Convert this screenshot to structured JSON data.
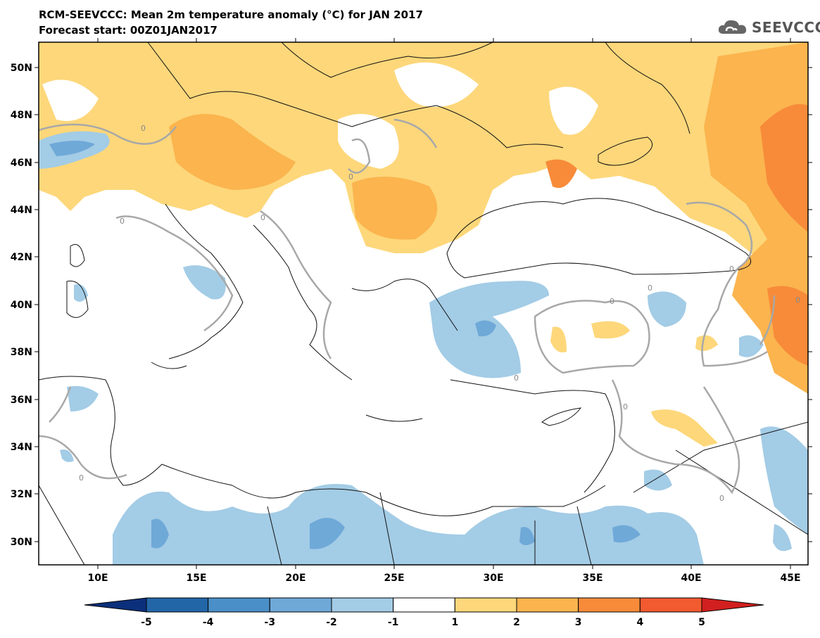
{
  "title": "RCM-SEEVCCC: Mean 2m temperature anomaly (°C) for JAN 2017",
  "subtitle": "Forecast start: 00Z01JAN2017",
  "logo_text": "SEEVCCC",
  "lat_labels": [
    "50N",
    "48N",
    "46N",
    "44N",
    "42N",
    "40N",
    "38N",
    "36N",
    "34N",
    "32N",
    "30N"
  ],
  "lon_labels": [
    "10E",
    "15E",
    "20E",
    "25E",
    "30E",
    "35E",
    "40E",
    "45E"
  ],
  "contour_label": "0",
  "colorbar": {
    "ticks": [
      "-5",
      "-4",
      "-3",
      "-2",
      "-1",
      "1",
      "2",
      "3",
      "4",
      "5"
    ],
    "colors": [
      "#0b2f7a",
      "#2266a8",
      "#4a8fc7",
      "#6fa9d8",
      "#a3cce6",
      "#ffffff",
      "#fdd77a",
      "#fbb44e",
      "#f78b3a",
      "#f25a30",
      "#d21f1f"
    ]
  }
}
